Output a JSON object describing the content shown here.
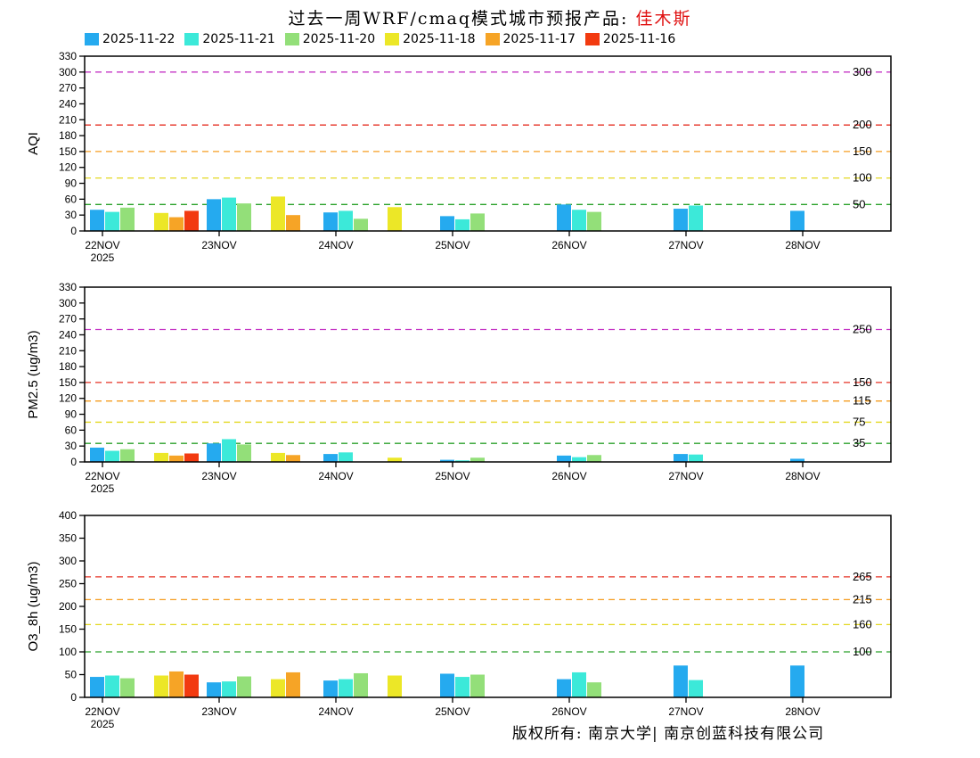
{
  "page": {
    "title_prefix": "过去一周WRF/cmaq模式城市预报产品:",
    "title_city": "佳木斯",
    "footer": "版权所有: 南京大学| 南京创蓝科技有限公司"
  },
  "legend": {
    "items": [
      {
        "label": "2025-11-22",
        "color": "#25aaef"
      },
      {
        "label": "2025-11-21",
        "color": "#3ce9d9"
      },
      {
        "label": "2025-11-20",
        "color": "#93df79"
      },
      {
        "label": "2025-11-18",
        "color": "#ece727"
      },
      {
        "label": "2025-11-17",
        "color": "#f6a426"
      },
      {
        "label": "2025-11-16",
        "color": "#f23a10"
      }
    ]
  },
  "chart_data": {
    "type": "bar",
    "title": "过去一周WRF/cmaq模式城市预报产品: 佳木斯",
    "categories": [
      "22NOV",
      "23NOV",
      "24NOV",
      "25NOV",
      "26NOV",
      "27NOV",
      "28NOV"
    ],
    "x_sub_label": "2025",
    "series_names": [
      "2025-11-22",
      "2025-11-21",
      "2025-11-20",
      "2025-11-18",
      "2025-11-17",
      "2025-11-16"
    ],
    "series_colors": [
      "#25aaef",
      "#3ce9d9",
      "#93df79",
      "#ece727",
      "#f6a426",
      "#f23a10"
    ],
    "legend_position": "top",
    "grid": false,
    "panels": [
      {
        "id": "aqi",
        "ylabel": "AQI",
        "ylim": [
          0,
          330
        ],
        "ytick_step": 30,
        "ref_lines": [
          {
            "value": 50,
            "color": "#2ba12b",
            "label": "50"
          },
          {
            "value": 100,
            "color": "#e3d820",
            "label": "100"
          },
          {
            "value": 150,
            "color": "#f59d20",
            "label": "150"
          },
          {
            "value": 200,
            "color": "#e63224",
            "label": "200"
          },
          {
            "value": 300,
            "color": "#c535c5",
            "label": "300"
          }
        ],
        "series": [
          {
            "name": "2025-11-22",
            "values": [
              40,
              60,
              35,
              28,
              50,
              42,
              38
            ]
          },
          {
            "name": "2025-11-21",
            "values": [
              36,
              63,
              38,
              22,
              40,
              48,
              null
            ]
          },
          {
            "name": "2025-11-20",
            "values": [
              44,
              52,
              23,
              33,
              36,
              null,
              null
            ]
          },
          {
            "name": "2025-11-18",
            "values": [
              34,
              65,
              45,
              null,
              null,
              null,
              null
            ]
          },
          {
            "name": "2025-11-17",
            "values": [
              26,
              30,
              null,
              null,
              null,
              null,
              null
            ]
          },
          {
            "name": "2025-11-16",
            "values": [
              38,
              null,
              null,
              null,
              null,
              null,
              null
            ]
          }
        ]
      },
      {
        "id": "pm25",
        "ylabel": "PM2.5 (ug/m3)",
        "ylim": [
          0,
          330
        ],
        "ytick_step": 30,
        "ref_lines": [
          {
            "value": 35,
            "color": "#2ba12b",
            "label": "35"
          },
          {
            "value": 75,
            "color": "#e3d820",
            "label": "75"
          },
          {
            "value": 115,
            "color": "#f59d20",
            "label": "115"
          },
          {
            "value": 150,
            "color": "#e63224",
            "label": "150"
          },
          {
            "value": 250,
            "color": "#c535c5",
            "label": "250"
          }
        ],
        "series": [
          {
            "name": "2025-11-22",
            "values": [
              27,
              35,
              15,
              4,
              12,
              15,
              6
            ]
          },
          {
            "name": "2025-11-21",
            "values": [
              21,
              43,
              18,
              3,
              9,
              14,
              null
            ]
          },
          {
            "name": "2025-11-20",
            "values": [
              24,
              33,
              null,
              8,
              13,
              null,
              null
            ]
          },
          {
            "name": "2025-11-18",
            "values": [
              17,
              17,
              8,
              null,
              null,
              null,
              null
            ]
          },
          {
            "name": "2025-11-17",
            "values": [
              12,
              13,
              null,
              null,
              null,
              null,
              null
            ]
          },
          {
            "name": "2025-11-16",
            "values": [
              16,
              null,
              null,
              null,
              null,
              null,
              null
            ]
          }
        ]
      },
      {
        "id": "o3",
        "ylabel": "O3_8h (ug/m3)",
        "ylim": [
          0,
          400
        ],
        "ytick_step": 50,
        "ref_lines": [
          {
            "value": 100,
            "color": "#2ba12b",
            "label": "100"
          },
          {
            "value": 160,
            "color": "#e3d820",
            "label": "160"
          },
          {
            "value": 215,
            "color": "#f59d20",
            "label": "215"
          },
          {
            "value": 265,
            "color": "#e63224",
            "label": "265"
          }
        ],
        "series": [
          {
            "name": "2025-11-22",
            "values": [
              45,
              33,
              37,
              52,
              40,
              70,
              70
            ]
          },
          {
            "name": "2025-11-21",
            "values": [
              48,
              35,
              40,
              45,
              55,
              38,
              null
            ]
          },
          {
            "name": "2025-11-20",
            "values": [
              42,
              46,
              53,
              50,
              33,
              null,
              null
            ]
          },
          {
            "name": "2025-11-18",
            "values": [
              48,
              40,
              48,
              null,
              null,
              null,
              null
            ]
          },
          {
            "name": "2025-11-17",
            "values": [
              57,
              55,
              null,
              null,
              null,
              null,
              null
            ]
          },
          {
            "name": "2025-11-16",
            "values": [
              50,
              null,
              null,
              null,
              null,
              null,
              null
            ]
          }
        ]
      }
    ]
  }
}
